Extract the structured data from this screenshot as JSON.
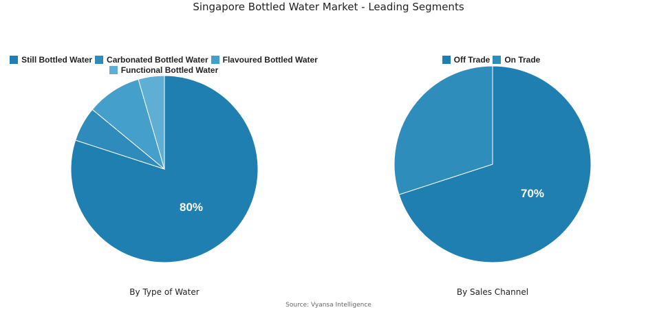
{
  "title": "Singapore Bottled Water Market - Leading Segments",
  "source": "Source: Vyansa Intelligence",
  "chart_data": [
    {
      "type": "pie",
      "title": "By Type of Water",
      "categories": [
        "Still Bottled Water",
        "Carbonated Bottled Water",
        "Flavoured Bottled Water",
        "Functional Bottled Water"
      ],
      "values": [
        80,
        6,
        9.5,
        4.5
      ],
      "colors": [
        "#1f7fb0",
        "#2e8bbb",
        "#449fca",
        "#5eafd3"
      ],
      "data_labels": [
        "80%"
      ],
      "legend_position": "top",
      "start_angle": "12 o'clock, clockwise"
    },
    {
      "type": "pie",
      "title": "By Sales Channel",
      "categories": [
        "Off Trade",
        "On Trade"
      ],
      "values": [
        70,
        30
      ],
      "colors": [
        "#1f7fb0",
        "#2f8dbb"
      ],
      "data_labels": [
        "70%"
      ],
      "legend_position": "top",
      "start_angle": "12 o'clock, clockwise"
    }
  ],
  "left": {
    "legend": [
      {
        "label": "Still Bottled Water",
        "color": "#1f7fb0"
      },
      {
        "label": "Carbonated Bottled Water",
        "color": "#2e8bbb"
      },
      {
        "label": "Flavoured Bottled Water",
        "color": "#449fca"
      },
      {
        "label": "Functional Bottled Water",
        "color": "#5eafd3"
      }
    ],
    "big_label": "80%",
    "subtitle": "By Type of Water"
  },
  "right": {
    "legend": [
      {
        "label": "Off Trade",
        "color": "#1f7fb0"
      },
      {
        "label": "On Trade",
        "color": "#2f8dbb"
      }
    ],
    "big_label": "70%",
    "subtitle": "By Sales Channel"
  }
}
